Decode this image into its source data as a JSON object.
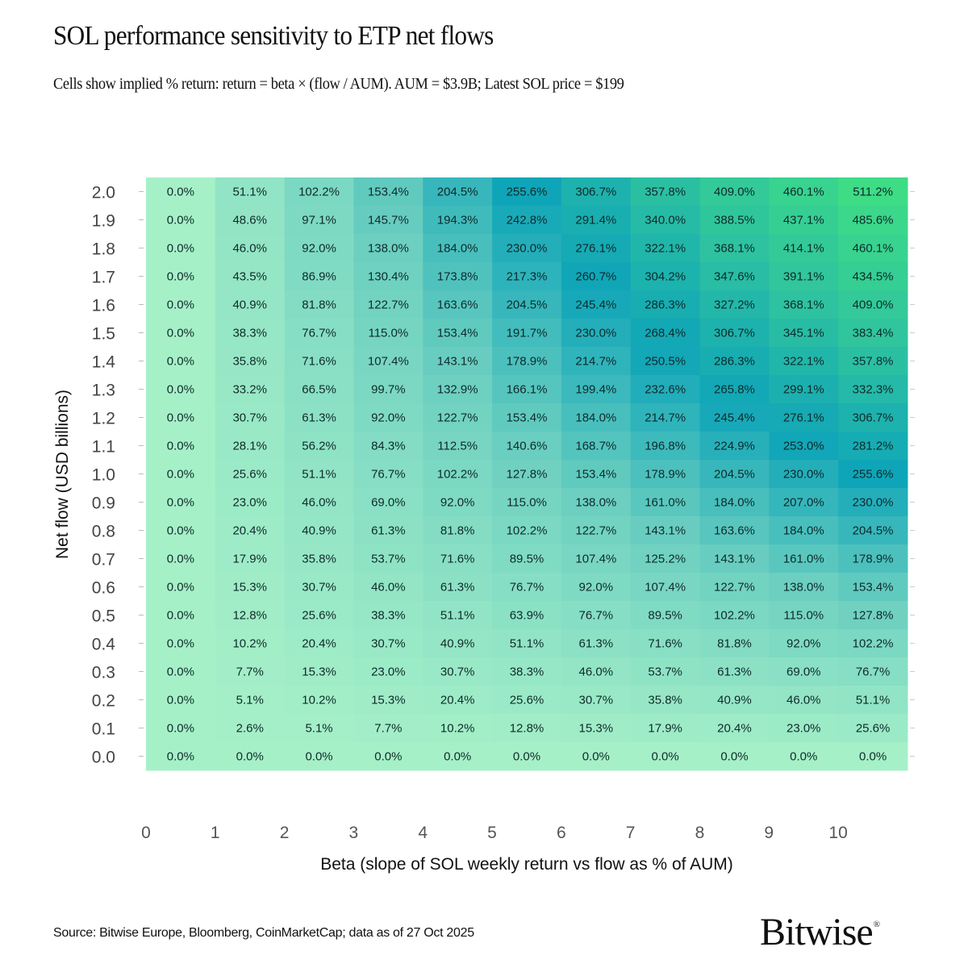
{
  "header": {
    "title": "SOL performance sensitivity to ETP net flows",
    "subtitle": "Cells show implied % return: return = beta × (flow / AUM).  AUM = $3.9B; Latest SOL price = $199"
  },
  "footer": {
    "source": "Source: Bitwise Europe, Bloomberg, CoinMarketCap; data as of 27 Oct 2025",
    "logo_text": "Bitwise",
    "logo_mark": "®"
  },
  "chart_data": {
    "type": "heatmap",
    "title": "SOL performance sensitivity to ETP net flows",
    "subtitle": "Cells show implied % return: return = beta × (flow / AUM).  AUM = $3.9B; Latest SOL price = $199",
    "xlabel": "Beta (slope of SOL weekly return vs flow as % of AUM)",
    "ylabel": "Net flow (USD billions)",
    "x": [
      "0",
      "1",
      "2",
      "3",
      "4",
      "5",
      "6",
      "7",
      "8",
      "9",
      "10"
    ],
    "y": [
      "2.0",
      "1.9",
      "1.8",
      "1.7",
      "1.6",
      "1.5",
      "1.4",
      "1.3",
      "1.2",
      "1.1",
      "1.0",
      "0.9",
      "0.8",
      "0.7",
      "0.6",
      "0.5",
      "0.4",
      "0.3",
      "0.2",
      "0.1",
      "0.0"
    ],
    "values": [
      [
        0.0,
        51.1,
        102.2,
        153.4,
        204.5,
        255.6,
        306.7,
        357.8,
        409.0,
        460.1,
        511.2
      ],
      [
        0.0,
        48.6,
        97.1,
        145.7,
        194.3,
        242.8,
        291.4,
        340.0,
        388.5,
        437.1,
        485.6
      ],
      [
        0.0,
        46.0,
        92.0,
        138.0,
        184.0,
        230.0,
        276.1,
        322.1,
        368.1,
        414.1,
        460.1
      ],
      [
        0.0,
        43.5,
        86.9,
        130.4,
        173.8,
        217.3,
        260.7,
        304.2,
        347.6,
        391.1,
        434.5
      ],
      [
        0.0,
        40.9,
        81.8,
        122.7,
        163.6,
        204.5,
        245.4,
        286.3,
        327.2,
        368.1,
        409.0
      ],
      [
        0.0,
        38.3,
        76.7,
        115.0,
        153.4,
        191.7,
        230.0,
        268.4,
        306.7,
        345.1,
        383.4
      ],
      [
        0.0,
        35.8,
        71.6,
        107.4,
        143.1,
        178.9,
        214.7,
        250.5,
        286.3,
        322.1,
        357.8
      ],
      [
        0.0,
        33.2,
        66.5,
        99.7,
        132.9,
        166.1,
        199.4,
        232.6,
        265.8,
        299.1,
        332.3
      ],
      [
        0.0,
        30.7,
        61.3,
        92.0,
        122.7,
        153.4,
        184.0,
        214.7,
        245.4,
        276.1,
        306.7
      ],
      [
        0.0,
        28.1,
        56.2,
        84.3,
        112.5,
        140.6,
        168.7,
        196.8,
        224.9,
        253.0,
        281.2
      ],
      [
        0.0,
        25.6,
        51.1,
        76.7,
        102.2,
        127.8,
        153.4,
        178.9,
        204.5,
        230.0,
        255.6
      ],
      [
        0.0,
        23.0,
        46.0,
        69.0,
        92.0,
        115.0,
        138.0,
        161.0,
        184.0,
        207.0,
        230.0
      ],
      [
        0.0,
        20.4,
        40.9,
        61.3,
        81.8,
        102.2,
        122.7,
        143.1,
        163.6,
        184.0,
        204.5
      ],
      [
        0.0,
        17.9,
        35.8,
        53.7,
        71.6,
        89.5,
        107.4,
        125.2,
        143.1,
        161.0,
        178.9
      ],
      [
        0.0,
        15.3,
        30.7,
        46.0,
        61.3,
        76.7,
        92.0,
        107.4,
        122.7,
        138.0,
        153.4
      ],
      [
        0.0,
        12.8,
        25.6,
        38.3,
        51.1,
        63.9,
        76.7,
        89.5,
        102.2,
        115.0,
        127.8
      ],
      [
        0.0,
        10.2,
        20.4,
        30.7,
        40.9,
        51.1,
        61.3,
        71.6,
        81.8,
        92.0,
        102.2
      ],
      [
        0.0,
        7.7,
        15.3,
        23.0,
        30.7,
        38.3,
        46.0,
        53.7,
        61.3,
        69.0,
        76.7
      ],
      [
        0.0,
        5.1,
        10.2,
        15.3,
        20.4,
        25.6,
        30.7,
        35.8,
        40.9,
        46.0,
        51.1
      ],
      [
        0.0,
        2.6,
        5.1,
        7.7,
        10.2,
        12.8,
        15.3,
        17.9,
        20.4,
        23.0,
        25.6
      ],
      [
        0.0,
        0.0,
        0.0,
        0.0,
        0.0,
        0.0,
        0.0,
        0.0,
        0.0,
        0.0,
        0.0
      ]
    ],
    "value_format": "percent_1dp",
    "value_range": [
      0.0,
      511.2
    ],
    "colormap_stops": [
      {
        "value": 0.0,
        "color": "#a6f0c8"
      },
      {
        "value": 138.0,
        "color": "#6ccfc0"
      },
      {
        "value": 255.6,
        "color": "#0fa5b8"
      },
      {
        "value": 368.1,
        "color": "#2ec2a0"
      },
      {
        "value": 511.2,
        "color": "#3edc85"
      }
    ],
    "grid": false,
    "legend": "none"
  }
}
